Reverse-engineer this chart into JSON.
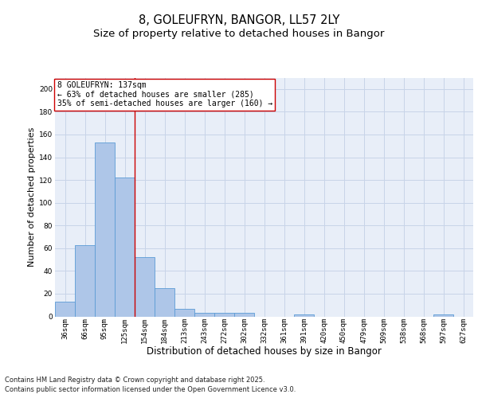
{
  "title_line1": "8, GOLEUFRYN, BANGOR, LL57 2LY",
  "title_line2": "Size of property relative to detached houses in Bangor",
  "xlabel": "Distribution of detached houses by size in Bangor",
  "ylabel": "Number of detached properties",
  "categories": [
    "36sqm",
    "66sqm",
    "95sqm",
    "125sqm",
    "154sqm",
    "184sqm",
    "213sqm",
    "243sqm",
    "272sqm",
    "302sqm",
    "332sqm",
    "361sqm",
    "391sqm",
    "420sqm",
    "450sqm",
    "479sqm",
    "509sqm",
    "538sqm",
    "568sqm",
    "597sqm",
    "627sqm"
  ],
  "values": [
    13,
    63,
    153,
    122,
    52,
    25,
    7,
    3,
    3,
    3,
    0,
    0,
    2,
    0,
    0,
    0,
    0,
    0,
    0,
    2,
    0
  ],
  "bar_color": "#aec6e8",
  "bar_edge_color": "#5b9bd5",
  "annotation_text": "8 GOLEUFRYN: 137sqm\n← 63% of detached houses are smaller (285)\n35% of semi-detached houses are larger (160) →",
  "annotation_box_color": "#ffffff",
  "annotation_box_edge_color": "#cc0000",
  "vline_x": 3.5,
  "vline_color": "#cc0000",
  "ylim": [
    0,
    210
  ],
  "yticks": [
    0,
    20,
    40,
    60,
    80,
    100,
    120,
    140,
    160,
    180,
    200
  ],
  "grid_color": "#c8d4e8",
  "background_color": "#e8eef8",
  "footer_line1": "Contains HM Land Registry data © Crown copyright and database right 2025.",
  "footer_line2": "Contains public sector information licensed under the Open Government Licence v3.0.",
  "title_fontsize": 10.5,
  "subtitle_fontsize": 9.5,
  "tick_fontsize": 6.5,
  "xlabel_fontsize": 8.5,
  "ylabel_fontsize": 8,
  "footer_fontsize": 6,
  "ann_fontsize": 7
}
